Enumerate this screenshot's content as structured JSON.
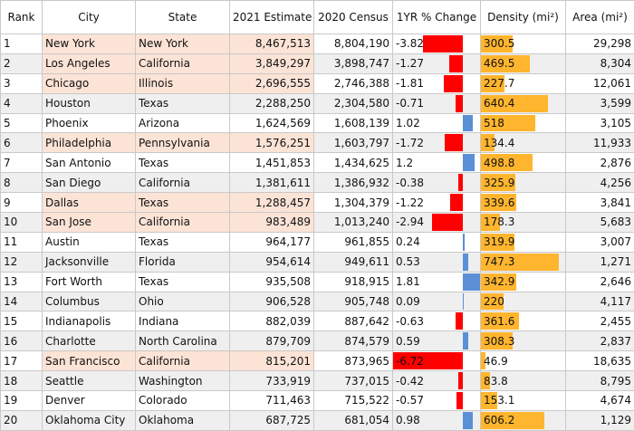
{
  "chart_data": {
    "type": "table",
    "columns": [
      "Rank",
      "City",
      "State",
      "2021 Estimate",
      "2020 Census",
      "1YR % Change",
      "Density (mi²)",
      "Area (mi²)"
    ],
    "rows": [
      {
        "rank": "1",
        "city": "New York",
        "state": "New York",
        "est": "8,467,513",
        "census": "8,804,190",
        "change": "-3.82",
        "density": "300.5",
        "area": "29,298",
        "highlight": true
      },
      {
        "rank": "2",
        "city": "Los Angeles",
        "state": "California",
        "est": "3,849,297",
        "census": "3,898,747",
        "change": "-1.27",
        "density": "469.5",
        "area": "8,304",
        "highlight": true
      },
      {
        "rank": "3",
        "city": "Chicago",
        "state": "Illinois",
        "est": "2,696,555",
        "census": "2,746,388",
        "change": "-1.81",
        "density": "227.7",
        "area": "12,061",
        "highlight": true
      },
      {
        "rank": "4",
        "city": "Houston",
        "state": "Texas",
        "est": "2,288,250",
        "census": "2,304,580",
        "change": "-0.71",
        "density": "640.4",
        "area": "3,599",
        "highlight": false
      },
      {
        "rank": "5",
        "city": "Phoenix",
        "state": "Arizona",
        "est": "1,624,569",
        "census": "1,608,139",
        "change": "1.02",
        "density": "518",
        "area": "3,105",
        "highlight": false
      },
      {
        "rank": "6",
        "city": "Philadelphia",
        "state": "Pennsylvania",
        "est": "1,576,251",
        "census": "1,603,797",
        "change": "-1.72",
        "density": "134.4",
        "area": "11,933",
        "highlight": true
      },
      {
        "rank": "7",
        "city": "San Antonio",
        "state": "Texas",
        "est": "1,451,853",
        "census": "1,434,625",
        "change": "1.2",
        "density": "498.8",
        "area": "2,876",
        "highlight": false
      },
      {
        "rank": "8",
        "city": "San Diego",
        "state": "California",
        "est": "1,381,611",
        "census": "1,386,932",
        "change": "-0.38",
        "density": "325.9",
        "area": "4,256",
        "highlight": false
      },
      {
        "rank": "9",
        "city": "Dallas",
        "state": "Texas",
        "est": "1,288,457",
        "census": "1,304,379",
        "change": "-1.22",
        "density": "339.6",
        "area": "3,841",
        "highlight": true
      },
      {
        "rank": "10",
        "city": "San Jose",
        "state": "California",
        "est": "983,489",
        "census": "1,013,240",
        "change": "-2.94",
        "density": "178.3",
        "area": "5,683",
        "highlight": true
      },
      {
        "rank": "11",
        "city": "Austin",
        "state": "Texas",
        "est": "964,177",
        "census": "961,855",
        "change": "0.24",
        "density": "319.9",
        "area": "3,007",
        "highlight": false
      },
      {
        "rank": "12",
        "city": "Jacksonville",
        "state": "Florida",
        "est": "954,614",
        "census": "949,611",
        "change": "0.53",
        "density": "747.3",
        "area": "1,271",
        "highlight": false
      },
      {
        "rank": "13",
        "city": "Fort Worth",
        "state": "Texas",
        "est": "935,508",
        "census": "918,915",
        "change": "1.81",
        "density": "342.9",
        "area": "2,646",
        "highlight": false
      },
      {
        "rank": "14",
        "city": "Columbus",
        "state": "Ohio",
        "est": "906,528",
        "census": "905,748",
        "change": "0.09",
        "density": "220",
        "area": "4,117",
        "highlight": false
      },
      {
        "rank": "15",
        "city": "Indianapolis",
        "state": "Indiana",
        "est": "882,039",
        "census": "887,642",
        "change": "-0.63",
        "density": "361.6",
        "area": "2,455",
        "highlight": false
      },
      {
        "rank": "16",
        "city": "Charlotte",
        "state": "North Carolina",
        "est": "879,709",
        "census": "874,579",
        "change": "0.59",
        "density": "308.3",
        "area": "2,837",
        "highlight": false
      },
      {
        "rank": "17",
        "city": "San Francisco",
        "state": "California",
        "est": "815,201",
        "census": "873,965",
        "change": "-6.72",
        "density": "46.9",
        "area": "18,635",
        "highlight": true
      },
      {
        "rank": "18",
        "city": "Seattle",
        "state": "Washington",
        "est": "733,919",
        "census": "737,015",
        "change": "-0.42",
        "density": "83.8",
        "area": "8,795",
        "highlight": false
      },
      {
        "rank": "19",
        "city": "Denver",
        "state": "Colorado",
        "est": "711,463",
        "census": "715,522",
        "change": "-0.57",
        "density": "153.1",
        "area": "4,674",
        "highlight": false
      },
      {
        "rank": "20",
        "city": "Oklahoma City",
        "state": "Oklahoma",
        "est": "687,725",
        "census": "681,054",
        "change": "0.98",
        "density": "606.2",
        "area": "1,129",
        "highlight": false
      }
    ],
    "change_scale": {
      "min": -6.72,
      "max": 1.81
    },
    "density_scale": {
      "max": 747.3
    },
    "colors": {
      "negative": "#ff0000",
      "positive": "#5b8fd6",
      "density": "#ffb52e",
      "highlight": "#fbe3d6",
      "zebra": "#efefef"
    }
  }
}
